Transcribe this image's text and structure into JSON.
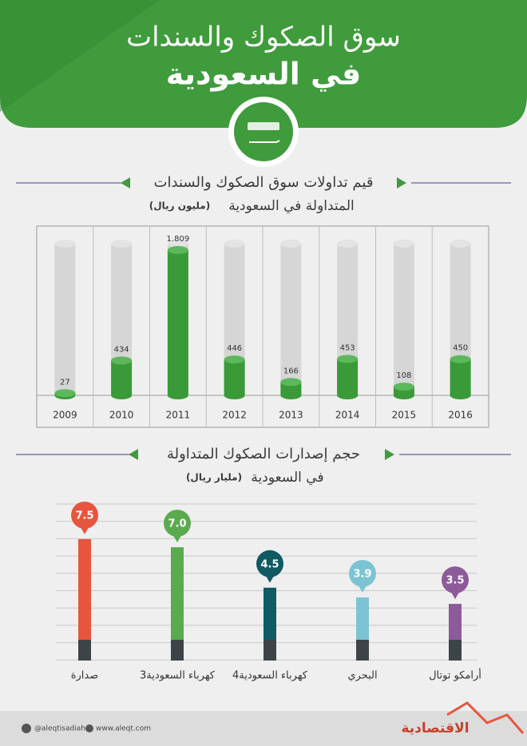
{
  "header": {
    "title_line1": "سوق الصكوك والسندات",
    "title_line2": "في السعودية"
  },
  "chart_data": [
    {
      "type": "bar",
      "title": "قيم تداولات سوق الصكوك والسندات",
      "subtitle": "المتداولة في السعودية",
      "unit": "(مليون ريال)",
      "categories": [
        "2009",
        "2010",
        "2011",
        "2012",
        "2013",
        "2014",
        "2015",
        "2016"
      ],
      "values": [
        27,
        434,
        1809,
        446,
        166,
        453,
        108,
        450
      ],
      "value_labels": [
        "27",
        "434",
        "1.809",
        "446",
        "166",
        "453",
        "108",
        "450"
      ],
      "color": "#3a9a38"
    },
    {
      "type": "bar",
      "title": "حجم إصدارات الصكوك المتداولة",
      "subtitle": "في السعودية",
      "unit": "(مليار ريال)",
      "categories": [
        "صدارة",
        "كهرباء السعودية3",
        "كهرباء السعودية4",
        "البحري",
        "أرامكو توتال"
      ],
      "values": [
        7.5,
        7.0,
        4.5,
        3.9,
        3.5
      ],
      "value_labels": [
        "7.5",
        "7.0",
        "4.5",
        "3.9",
        "3.5"
      ],
      "colors": [
        "#e8553e",
        "#5aab4f",
        "#0f5a63",
        "#7cc4d3",
        "#8d5b99"
      ]
    }
  ],
  "footer": {
    "twitter": "@aleqtisadiah",
    "website": "www.aleqt.com",
    "logo": "الاقتصادية"
  }
}
